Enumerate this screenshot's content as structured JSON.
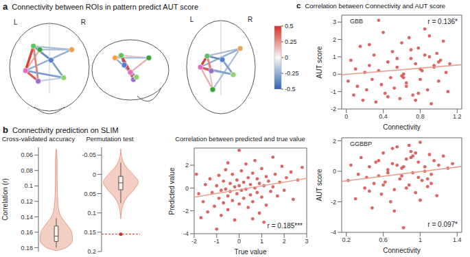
{
  "chart_data": [
    {
      "type": "network",
      "panel": "a",
      "panel_title": "Connectivity between ROIs in pattern predict AUT score",
      "labels": [
        "L",
        "R"
      ],
      "edge_weights": [
        0.45,
        0.4,
        0.3,
        -0.2,
        -0.25,
        -0.3,
        -0.15,
        -0.35,
        -0.2,
        0.2,
        -0.3,
        0.15
      ],
      "colorbar": {
        "range": [
          -0.5,
          0.5
        ],
        "ticks": [
          -0.5,
          -0.25,
          0,
          0.25,
          0.5
        ]
      }
    },
    {
      "type": "violin",
      "panel": "b",
      "panel_title": "Connectivity prediction on SLIM",
      "title": "Cross-validated accuracy",
      "ylabel": "Correlation (r)",
      "ylim": [
        0.05,
        0.185
      ],
      "yticks": [
        0.06,
        0.08,
        0.1,
        0.12,
        0.14,
        0.16,
        0.18
      ],
      "color": "#f2c9bb",
      "density": {
        "y": [
          0.052,
          0.06,
          0.07,
          0.08,
          0.09,
          0.1,
          0.11,
          0.12,
          0.13,
          0.14,
          0.15,
          0.16,
          0.17,
          0.18,
          0.184
        ],
        "values": [
          0,
          0.04,
          0.05,
          0.05,
          0.05,
          0.06,
          0.07,
          0.09,
          0.14,
          0.3,
          0.65,
          0.95,
          1,
          0.6,
          0
        ]
      },
      "box": {
        "whisker_low": 0.142,
        "q1": 0.152,
        "median": 0.165,
        "q3": 0.172,
        "whisker_high": 0.18
      }
    },
    {
      "type": "violin",
      "panel": "b",
      "title": "Permutation test",
      "ylim": [
        -0.07,
        0.2
      ],
      "yticks": [
        -0.05,
        0,
        0.05,
        0.1,
        0.15,
        0.2
      ],
      "color": "#f2c9bb",
      "density": {
        "y": [
          -0.065,
          -0.04,
          -0.02,
          0,
          0.02,
          0.04,
          0.06,
          0.08,
          0.1,
          0.115
        ],
        "values": [
          0,
          0.08,
          0.3,
          0.7,
          1,
          0.75,
          0.35,
          0.12,
          0.03,
          0
        ]
      },
      "box": {
        "whisker_low": -0.03,
        "q1": 0.005,
        "median": 0.022,
        "q3": 0.04,
        "whisker_high": 0.075
      },
      "observed": 0.155
    },
    {
      "type": "scatter",
      "panel": "b",
      "title": "Correlation between predicted and true value",
      "xlabel": "True value",
      "ylabel": "Predicted value",
      "annotation": "r = 0.185***",
      "color": "#d9534f",
      "xlim": [
        -2,
        3
      ],
      "xticks": [
        -2,
        -1,
        0,
        1,
        2,
        3
      ],
      "ylim": [
        -4,
        3.5
      ],
      "yticks": [
        -4,
        -2,
        0,
        2
      ],
      "x": [
        -1.8,
        -1.6,
        -1.5,
        -1.4,
        -1.3,
        -1.2,
        -1.1,
        -1.0,
        -1.0,
        -0.9,
        -0.9,
        -0.8,
        -0.8,
        -0.7,
        -0.7,
        -0.6,
        -0.6,
        -0.5,
        -0.5,
        -0.4,
        -0.4,
        -0.3,
        -0.3,
        -0.2,
        -0.2,
        -0.1,
        -0.1,
        0,
        0,
        0.1,
        0.1,
        0.2,
        0.2,
        0.3,
        0.3,
        0.4,
        0.4,
        0.5,
        0.5,
        0.6,
        0.6,
        0.7,
        0.7,
        0.8,
        0.8,
        0.9,
        0.9,
        1.0,
        1.0,
        1.1,
        1.2,
        1.2,
        1.3,
        1.4,
        1.5,
        1.5,
        1.6,
        1.7,
        1.8,
        1.9,
        2.0,
        2.1,
        2.3,
        2.4,
        2.6,
        2.8,
        -1.9,
        -1.7,
        0.0,
        -0.5,
        1.1,
        0.6
      ],
      "values": [
        -0.5,
        -1.2,
        0.3,
        -2.1,
        0.8,
        -0.4,
        -1.6,
        0.2,
        -3.6,
        1.1,
        -0.9,
        -0.2,
        -2.4,
        0.6,
        -1.3,
        -0.1,
        1.6,
        -0.7,
        -1.9,
        0.4,
        -0.3,
        1.2,
        -1.1,
        0.1,
        -2.8,
        0.7,
        -0.5,
        0.2,
        -1.4,
        1.5,
        -0.2,
        0.5,
        -0.9,
        2.1,
        -0.1,
        -1.7,
        0.9,
        0.3,
        -0.6,
        1.3,
        -1.2,
        0.0,
        2.4,
        -0.4,
        0.8,
        -2.2,
        0.4,
        1.7,
        -0.8,
        0.2,
        1.0,
        -1.5,
        0.6,
        -0.3,
        2.7,
        0.1,
        1.2,
        -0.7,
        0.5,
        1.9,
        -0.2,
        0.9,
        1.4,
        -1.0,
        0.7,
        1.8,
        1.2,
        -2.6,
        3.3,
        2.2,
        -3.0,
        -2.7
      ]
    },
    {
      "type": "scatter",
      "panel": "c",
      "panel_title": "Correlation between Connectivity and AUT score",
      "label": "GBB",
      "xlabel": "Connectivity",
      "ylabel": "AUT score",
      "annotation": "r = 0.136*",
      "color": "#d9534f",
      "xlim": [
        -0.05,
        1.25
      ],
      "xticks": [
        0,
        0.4,
        0.8,
        1.2
      ],
      "ylim": [
        -2,
        3.4
      ],
      "yticks": [
        -2,
        -1,
        0,
        1,
        2,
        3
      ],
      "x": [
        0.02,
        0.05,
        0.08,
        0.1,
        0.12,
        0.15,
        0.18,
        0.2,
        0.22,
        0.25,
        0.28,
        0.3,
        0.32,
        0.35,
        0.38,
        0.4,
        0.42,
        0.45,
        0.48,
        0.5,
        0.52,
        0.55,
        0.58,
        0.6,
        0.62,
        0.65,
        0.68,
        0.7,
        0.72,
        0.75,
        0.78,
        0.8,
        0.82,
        0.85,
        0.88,
        0.9,
        0.92,
        0.95,
        0.98,
        1.0,
        1.02,
        1.05,
        1.08,
        1.1,
        1.12,
        0.45,
        0.6,
        0.7,
        0.8,
        0.9,
        0.55,
        0.65,
        0.75,
        0.85,
        0.95,
        0.35,
        1.0,
        0.25,
        0.62,
        0.78
      ],
      "values": [
        -0.4,
        0.8,
        -1.2,
        0.3,
        -0.7,
        1.6,
        -1.5,
        0.1,
        -0.9,
        0.5,
        -0.3,
        1.1,
        -1.6,
        0.2,
        -0.6,
        2.4,
        -1.1,
        0.7,
        -0.2,
        1.3,
        -0.8,
        0.4,
        -1.4,
        1.8,
        0.0,
        -0.5,
        2.1,
        0.9,
        -1.2,
        0.6,
        1.5,
        -0.3,
        0.2,
        2.6,
        -0.9,
        1.0,
        -1.7,
        0.5,
        1.2,
        -0.4,
        0.8,
        1.9,
        0.1,
        -1.0,
        0.6,
        -1.3,
        -0.1,
        1.4,
        0.3,
        2.2,
        0.9,
        -0.7,
        -1.5,
        1.1,
        0.4,
        3.1,
        0.7,
        1.7,
        -0.2,
        -1.1
      ]
    },
    {
      "type": "scatter",
      "panel": "c",
      "label": "GGBBP",
      "xlabel": "Connectivity",
      "ylabel": "AUT score",
      "annotation": "r = 0.097*",
      "color": "#d9534f",
      "xlim": [
        0.15,
        1.45
      ],
      "xticks": [
        0.2,
        0.6,
        1,
        1.4
      ],
      "ylim": [
        -4,
        2.2
      ],
      "yticks": [
        -4,
        -2,
        0,
        2
      ],
      "x": [
        0.22,
        0.25,
        0.3,
        0.33,
        0.36,
        0.4,
        0.42,
        0.45,
        0.48,
        0.5,
        0.52,
        0.55,
        0.58,
        0.6,
        0.62,
        0.65,
        0.68,
        0.7,
        0.72,
        0.75,
        0.78,
        0.8,
        0.82,
        0.85,
        0.88,
        0.9,
        0.92,
        0.95,
        0.98,
        1.0,
        1.02,
        1.05,
        1.08,
        1.1,
        1.12,
        1.15,
        1.18,
        1.2,
        1.25,
        1.3,
        0.6,
        0.7,
        0.8,
        0.9,
        1.0,
        0.65,
        0.75,
        0.85,
        0.95,
        1.05,
        0.55,
        0.72,
        0.88,
        0.98,
        1.12,
        0.45,
        0.82,
        0.92,
        1.08,
        1.35
      ],
      "values": [
        -0.6,
        0.4,
        -1.8,
        -0.2,
        0.9,
        -1.1,
        -0.4,
        0.3,
        -2.4,
        -0.8,
        0.6,
        -0.3,
        -1.5,
        1.2,
        -0.7,
        0.1,
        -2.0,
        0.5,
        -1.2,
        1.6,
        -0.5,
        0.2,
        -3.7,
        0.8,
        -0.9,
        1.3,
        -0.1,
        -1.4,
        0.6,
        1.9,
        -0.6,
        0.3,
        -1.0,
        1.1,
        -0.2,
        0.7,
        -1.6,
        0.4,
        1.0,
        0.2,
        -0.9,
        1.5,
        -0.3,
        0.9,
        -1.9,
        -0.1,
        0.4,
        -1.1,
        1.2,
        0.0,
        0.7,
        -2.6,
        1.7,
        -0.4,
        -0.8,
        -1.3,
        0.3,
        1.0,
        -0.5,
        0.5
      ]
    }
  ]
}
